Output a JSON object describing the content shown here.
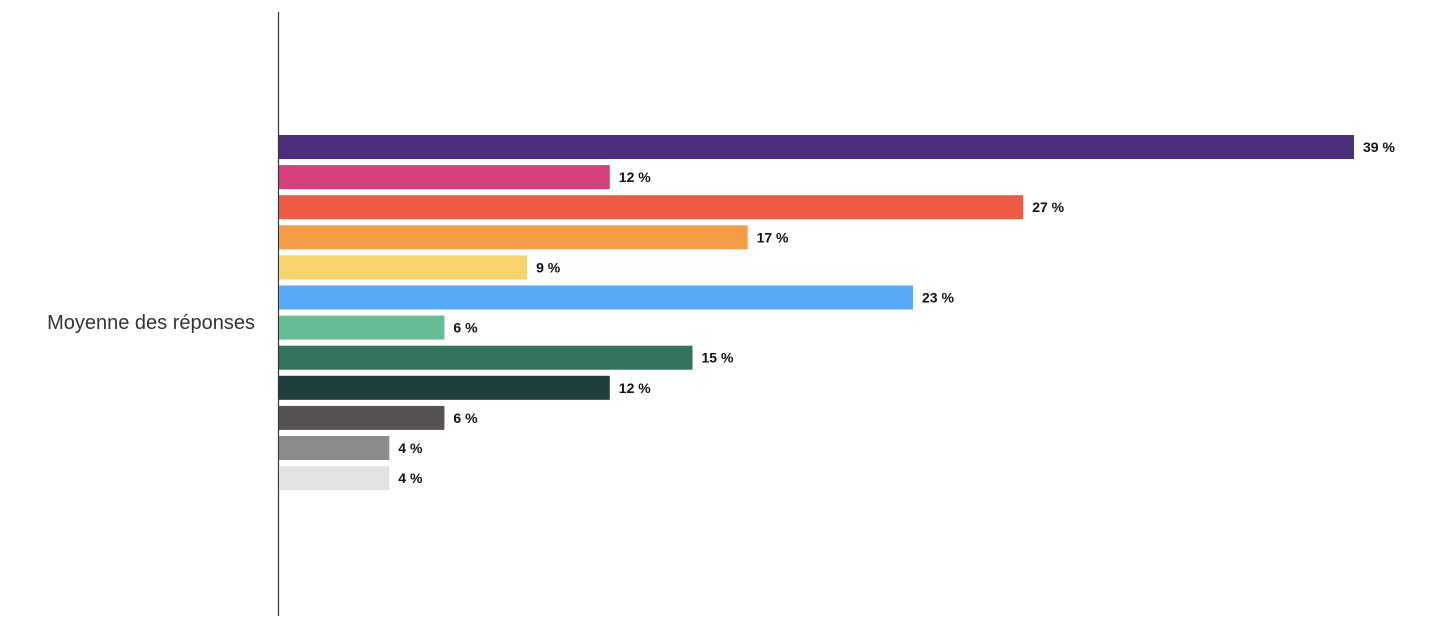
{
  "chart_data": {
    "type": "bar",
    "orientation": "horizontal",
    "categories": [
      "Moyenne des réponses"
    ],
    "series": [
      {
        "values": [
          39
        ],
        "color": "#4b2e7c",
        "label": "39 %"
      },
      {
        "values": [
          12
        ],
        "color": "#d6427f",
        "label": "12 %"
      },
      {
        "values": [
          27
        ],
        "color": "#ec5b45",
        "label": "27 %"
      },
      {
        "values": [
          17
        ],
        "color": "#f49d45",
        "label": "17 %"
      },
      {
        "values": [
          9
        ],
        "color": "#f7d36f",
        "label": "9 %"
      },
      {
        "values": [
          23
        ],
        "color": "#56aaf5",
        "label": "23 %"
      },
      {
        "values": [
          6
        ],
        "color": "#66bd95",
        "label": "6 %"
      },
      {
        "values": [
          15
        ],
        "color": "#33735b",
        "label": "15 %"
      },
      {
        "values": [
          12
        ],
        "color": "#1e3d3d",
        "label": "12 %"
      },
      {
        "values": [
          6
        ],
        "color": "#565352",
        "label": "6 %"
      },
      {
        "values": [
          4
        ],
        "color": "#8d8b8a",
        "label": "4 %"
      },
      {
        "values": [
          4
        ],
        "color": "#e3e3e3",
        "label": "4 %"
      }
    ],
    "xlim": [
      0,
      39
    ],
    "unit": "%",
    "grid": false,
    "legend": "none",
    "title": "",
    "xlabel": "",
    "ylabel": ""
  }
}
